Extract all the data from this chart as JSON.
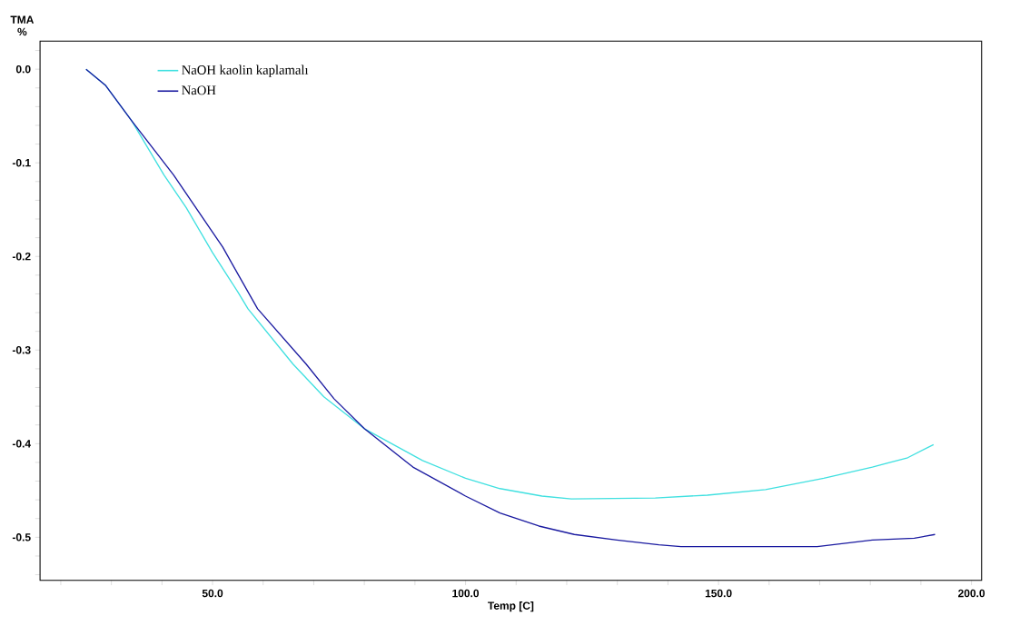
{
  "chart_data": {
    "type": "line",
    "xlabel": "Temp [C]",
    "ylabel": "TMA %",
    "legend": "top left",
    "xlim": [
      15.9,
      202
    ],
    "ylim": [
      -0.546,
      0.03
    ],
    "xticks": [
      {
        "value": 20,
        "label": null
      },
      {
        "value": 30,
        "label": null
      },
      {
        "value": 40,
        "label": null
      },
      {
        "value": 50,
        "label": "50.0"
      },
      {
        "value": 60,
        "label": null
      },
      {
        "value": 70,
        "label": null
      },
      {
        "value": 80,
        "label": null
      },
      {
        "value": 90,
        "label": null
      },
      {
        "value": 100,
        "label": "100.0"
      },
      {
        "value": 110,
        "label": null
      },
      {
        "value": 120,
        "label": null
      },
      {
        "value": 130,
        "label": null
      },
      {
        "value": 140,
        "label": null
      },
      {
        "value": 150,
        "label": "150.0"
      },
      {
        "value": 160,
        "label": null
      },
      {
        "value": 170,
        "label": null
      },
      {
        "value": 180,
        "label": null
      },
      {
        "value": 190,
        "label": null
      },
      {
        "value": 200,
        "label": "200.0"
      }
    ],
    "yticks": [
      {
        "value": 0.02,
        "label": null
      },
      {
        "value": 0,
        "label": "0.0"
      },
      {
        "value": -0.02,
        "label": null
      },
      {
        "value": -0.04,
        "label": null
      },
      {
        "value": -0.06,
        "label": null
      },
      {
        "value": -0.08,
        "label": null
      },
      {
        "value": -0.1,
        "label": "-0.1"
      },
      {
        "value": -0.12,
        "label": null
      },
      {
        "value": -0.14,
        "label": null
      },
      {
        "value": -0.16,
        "label": null
      },
      {
        "value": -0.18,
        "label": null
      },
      {
        "value": -0.2,
        "label": "-0.2"
      },
      {
        "value": -0.22,
        "label": null
      },
      {
        "value": -0.24,
        "label": null
      },
      {
        "value": -0.26,
        "label": null
      },
      {
        "value": -0.28,
        "label": null
      },
      {
        "value": -0.3,
        "label": "-0.3"
      },
      {
        "value": -0.32,
        "label": null
      },
      {
        "value": -0.34,
        "label": null
      },
      {
        "value": -0.36,
        "label": null
      },
      {
        "value": -0.38,
        "label": null
      },
      {
        "value": -0.4,
        "label": "-0.4"
      },
      {
        "value": -0.42,
        "label": null
      },
      {
        "value": -0.44,
        "label": null
      },
      {
        "value": -0.46,
        "label": null
      },
      {
        "value": -0.48,
        "label": null
      },
      {
        "value": -0.5,
        "label": "-0.5"
      },
      {
        "value": -0.52,
        "label": null
      },
      {
        "value": -0.54,
        "label": null
      }
    ],
    "series": [
      {
        "name": "NaOH kaolin kaplamalı",
        "color": "#40e0e0",
        "x": [
          25.0,
          28.8,
          34,
          40.4,
          44.8,
          50,
          55.0,
          57.0,
          65.9,
          72,
          80.0,
          91.5,
          100,
          106.8,
          115.1,
          120.9,
          137.5,
          147.8,
          159.3,
          170.8,
          180.4,
          187.4,
          192.5
        ],
        "values": [
          0,
          -0.017,
          -0.055,
          -0.113,
          -0.148,
          -0.196,
          -0.238,
          -0.256,
          -0.315,
          -0.35,
          -0.384,
          -0.418,
          -0.437,
          -0.448,
          -0.456,
          -0.459,
          -0.458,
          -0.455,
          -0.449,
          -0.437,
          -0.425,
          -0.415,
          -0.401
        ]
      },
      {
        "name": "NaOH",
        "color": "#1a1aa0",
        "x": [
          25.0,
          28.8,
          34,
          42.3,
          46.7,
          52,
          58.9,
          68.5,
          74,
          80.0,
          89.6,
          100,
          106.8,
          114.5,
          121.5,
          129.9,
          138.2,
          142.6,
          169.5,
          180.4,
          188.7,
          192.8
        ],
        "values": [
          0,
          -0.017,
          -0.055,
          -0.113,
          -0.148,
          -0.19,
          -0.256,
          -0.315,
          -0.352,
          -0.384,
          -0.425,
          -0.456,
          -0.474,
          -0.488,
          -0.497,
          -0.503,
          -0.508,
          -0.51,
          -0.51,
          -0.503,
          -0.501,
          -0.497
        ]
      }
    ]
  }
}
